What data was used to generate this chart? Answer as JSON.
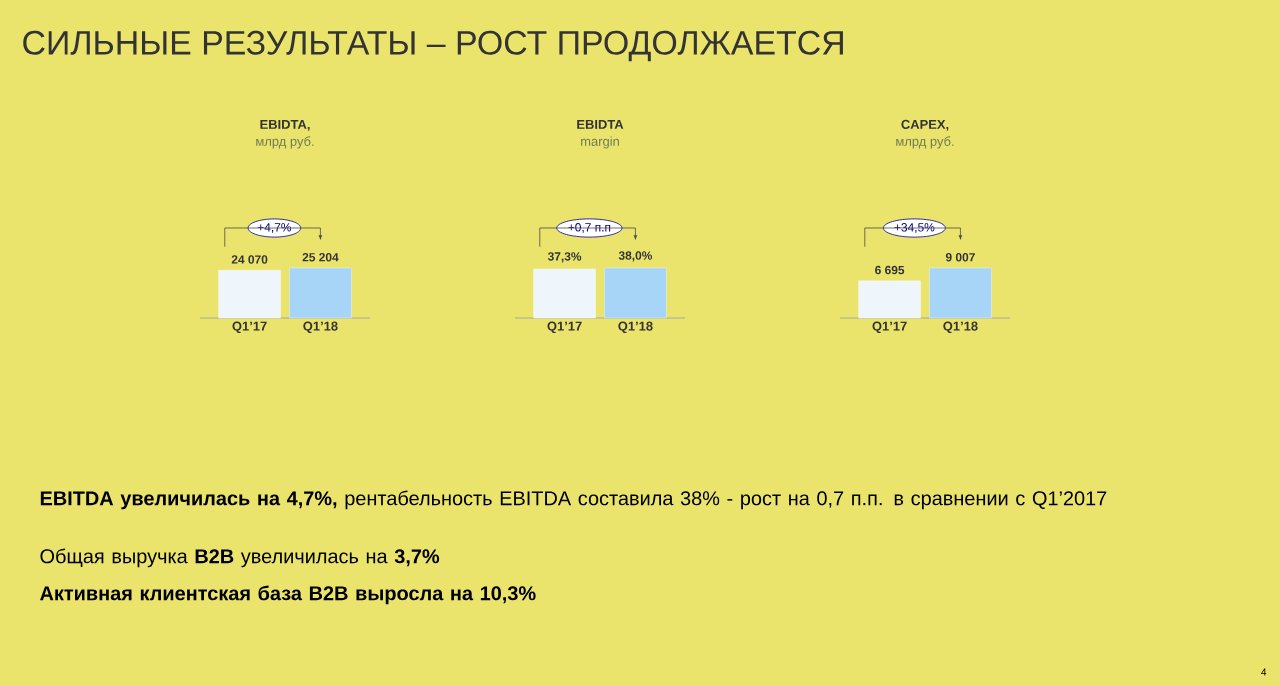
{
  "chart_data": [
    {
      "type": "other",
      "title": "СИЛЬНЫЕ РЕЗУЛЬТАТЫ – РОСТ ПРОДОЛЖАЕТСЯ",
      "annotations": [
        "**EBITDA увеличилась на 4,7%,** рентабельность EBITDA составила 38% - рост на 0,7 п.п. в сравнении с Q1’2017",
        "Общая выручка **B2B** увеличилась на **3,7%**",
        "**Активная клиентская база B2B выросла на 10,3%**",
        "4"
      ]
    },
    {
      "type": "bar",
      "title": "EBIDTA,",
      "subtitle": "млрд руб.",
      "categories": [
        "Q1’17",
        "Q1’18"
      ],
      "values": [
        24070,
        25204
      ],
      "colors": [
        "#eef6fb",
        "#a6d5f7"
      ],
      "value_labels": [
        "24 070",
        "25 204"
      ],
      "annotations": [
        "+4,7%"
      ]
    },
    {
      "type": "bar",
      "title": "EBIDTA",
      "subtitle": "margin",
      "categories": [
        "Q1’17",
        "Q1’18"
      ],
      "values": [
        37.3,
        38.0
      ],
      "colors": [
        "#eef6fb",
        "#a6d5f7"
      ],
      "value_labels": [
        "37,3%",
        "38,0%"
      ],
      "annotations": [
        "+0,7 п.п"
      ]
    },
    {
      "type": "bar",
      "title": "CAPEX,",
      "subtitle": "млрд руб.",
      "categories": [
        "Q1’17",
        "Q1’18"
      ],
      "values": [
        6695,
        9007
      ],
      "colors": [
        "#eef6fb",
        "#a6d5f7"
      ],
      "value_labels": [
        "6 695",
        "9 007"
      ],
      "annotations": [
        "+34,5%"
      ]
    }
  ]
}
